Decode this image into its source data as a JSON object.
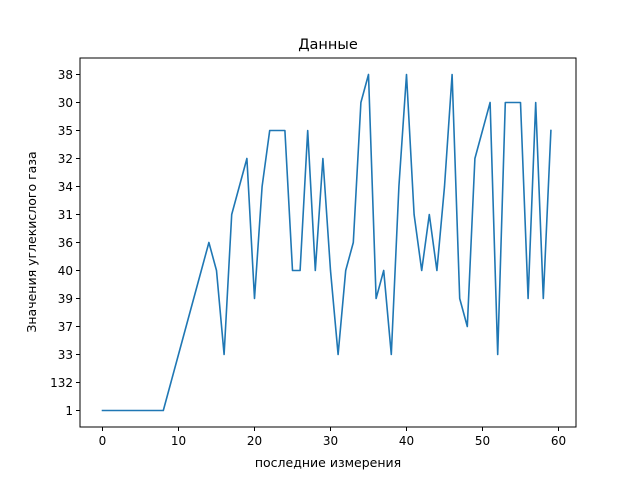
{
  "chart_data": {
    "type": "line",
    "title": "Данные",
    "xlabel": "последние измерения",
    "ylabel": "Значения углекислого газа",
    "xlim": [
      -4,
      61
    ],
    "x_ticks": [
      0,
      10,
      20,
      30,
      40,
      50,
      60
    ],
    "y_categories": [
      "1",
      "132",
      "33",
      "37",
      "39",
      "40",
      "36",
      "31",
      "34",
      "32",
      "35",
      "30",
      "38"
    ],
    "grid": false,
    "series": [
      {
        "color": "#1f77b4",
        "x": [
          0,
          1,
          2,
          3,
          4,
          5,
          6,
          7,
          8,
          9,
          10,
          11,
          12,
          13,
          14,
          15,
          16,
          17,
          18,
          19,
          20,
          21,
          22,
          23,
          24,
          25,
          26,
          27,
          28,
          29,
          30,
          31,
          32,
          33,
          34,
          35,
          36,
          37,
          38,
          39,
          40,
          41,
          42,
          43,
          44,
          45,
          46,
          47,
          48,
          49,
          50,
          51,
          52,
          53,
          54,
          55,
          56,
          57,
          58,
          59
        ],
        "y": [
          "1",
          "1",
          "1",
          "1",
          "1",
          "1",
          "1",
          "1",
          "1",
          "132",
          "33",
          "37",
          "39",
          "40",
          "36",
          "40",
          "33",
          "31",
          "34",
          "32",
          "39",
          "34",
          "35",
          "35",
          "35",
          "40",
          "40",
          "35",
          "40",
          "32",
          "40",
          "33",
          "40",
          "36",
          "30",
          "38",
          "39",
          "40",
          "33",
          "34",
          "38",
          "31",
          "40",
          "31",
          "40",
          "34",
          "38",
          "39",
          "37",
          "32",
          "35",
          "30",
          "33",
          "30",
          "30",
          "30",
          "39",
          "30",
          "39",
          "35"
        ]
      }
    ]
  }
}
